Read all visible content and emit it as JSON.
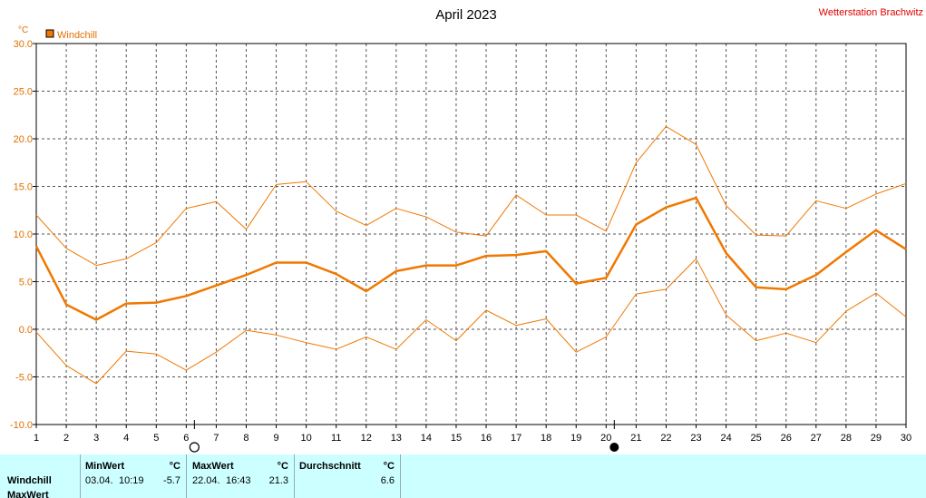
{
  "header": {
    "title": "April 2023",
    "station": "Wetterstation Brachwitz",
    "unit": "°C",
    "legend": "Windchill"
  },
  "colors": {
    "series": "#f07800",
    "axis_text": "#e07000",
    "station": "#e00000",
    "stats_bg": "#ccffff"
  },
  "markers": {
    "full_moon_day": "6",
    "new_moon_day": "20"
  },
  "chart_data": {
    "type": "line",
    "ylabel": "°C",
    "ylim": [
      -10,
      30
    ],
    "yticks": [
      "30.0",
      "25.0",
      "20.0",
      "15.0",
      "10.0",
      "5.0",
      "0.0",
      "-5.0",
      "-10.0"
    ],
    "x": [
      1,
      2,
      3,
      4,
      5,
      6,
      7,
      8,
      9,
      10,
      11,
      12,
      13,
      14,
      15,
      16,
      17,
      18,
      19,
      20,
      21,
      22,
      23,
      24,
      25,
      26,
      27,
      28,
      29,
      30
    ],
    "grid": true,
    "legend": "top-left",
    "series": [
      {
        "name": "Windchill",
        "role": "avg",
        "values": [
          8.7,
          2.6,
          1.0,
          2.7,
          2.8,
          3.5,
          4.6,
          5.7,
          7.0,
          7.0,
          5.8,
          4.0,
          6.1,
          6.7,
          6.7,
          7.7,
          7.8,
          8.2,
          4.8,
          5.4,
          11.0,
          12.8,
          13.8,
          8.0,
          4.4,
          4.2,
          5.7,
          8.1,
          10.4,
          8.4
        ]
      },
      {
        "role": "max",
        "values": [
          12.0,
          8.5,
          6.7,
          7.4,
          9.1,
          12.7,
          13.4,
          10.5,
          15.2,
          15.5,
          12.4,
          10.9,
          12.7,
          11.8,
          10.2,
          9.8,
          14.1,
          12.0,
          12.0,
          10.3,
          17.5,
          21.3,
          19.4,
          13.0,
          9.9,
          9.8,
          13.5,
          12.7,
          14.2,
          15.3
        ]
      },
      {
        "role": "min",
        "values": [
          -0.3,
          -3.8,
          -5.7,
          -2.3,
          -2.6,
          -4.3,
          -2.4,
          -0.1,
          -0.6,
          -1.4,
          -2.1,
          -0.8,
          -2.1,
          1.0,
          -1.2,
          2.0,
          0.4,
          1.1,
          -2.4,
          -0.8,
          3.7,
          4.2,
          7.4,
          1.5,
          -1.2,
          -0.4,
          -1.4,
          1.9,
          3.8,
          1.3
        ]
      }
    ]
  },
  "stats": {
    "row_labels": [
      "Windchill",
      "MaxWert"
    ],
    "min": {
      "header": "MinWert",
      "unit": "°C",
      "date": "03.04.",
      "time": "10:19",
      "value": "-5.7"
    },
    "max": {
      "header": "MaxWert",
      "unit": "°C",
      "date": "22.04.",
      "time": "16:43",
      "value": "21.3"
    },
    "avg": {
      "header": "Durchschnitt",
      "unit": "°C",
      "value": "6.6"
    }
  }
}
